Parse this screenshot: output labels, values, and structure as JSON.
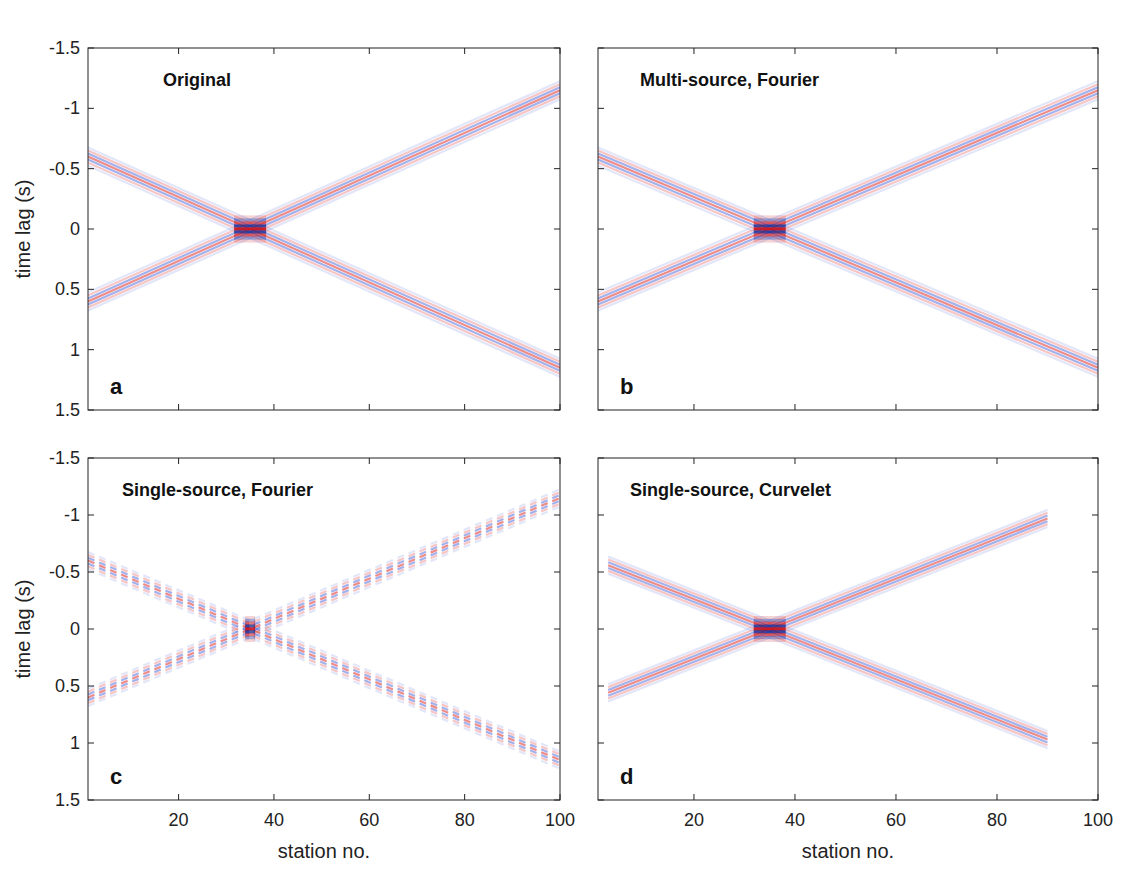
{
  "chart_data": [
    {
      "type": "line",
      "title": "Original",
      "annotation": "a",
      "ylabel": "time lag (s)",
      "x": [
        1,
        35,
        100
      ],
      "series": [
        {
          "values": [
            -0.6,
            0,
            1.15
          ]
        },
        {
          "values": [
            0.6,
            0,
            -1.15
          ]
        }
      ],
      "xlim": [
        1,
        100
      ],
      "xticks": [
        20,
        40,
        60,
        80,
        100
      ],
      "ylim": [
        1.5,
        -1.5
      ],
      "yticks": [
        -1.5,
        -1,
        -0.5,
        0,
        0.5,
        1,
        1.5
      ],
      "tick_labels": "y",
      "line_style": "solid"
    },
    {
      "type": "line",
      "title": "Multi-source, Fourier",
      "annotation": "b",
      "x": [
        1,
        35,
        100
      ],
      "series": [
        {
          "values": [
            -0.6,
            0,
            1.15
          ]
        },
        {
          "values": [
            0.6,
            0,
            -1.15
          ]
        }
      ],
      "xlim": [
        1,
        100
      ],
      "xticks": [
        20,
        40,
        60,
        80,
        100
      ],
      "ylim": [
        1.5,
        -1.5
      ],
      "yticks": [
        -1.5,
        -1,
        -0.5,
        0,
        0.5,
        1,
        1.5
      ],
      "tick_labels": false,
      "line_style": "solid"
    },
    {
      "type": "line",
      "title": "Single-source, Fourier",
      "annotation": "c",
      "ylabel": "time lag (s)",
      "xlabel": "station no.",
      "x": [
        1,
        35,
        100
      ],
      "series": [
        {
          "values": [
            -0.6,
            0,
            1.15
          ]
        },
        {
          "values": [
            0.6,
            0,
            -1.15
          ]
        }
      ],
      "xlim": [
        1,
        100
      ],
      "xticks": [
        20,
        40,
        60,
        80,
        100
      ],
      "ylim": [
        1.5,
        -1.5
      ],
      "yticks": [
        -1.5,
        -1,
        -0.5,
        0,
        0.5,
        1,
        1.5
      ],
      "tick_labels": true,
      "line_style": "dashed"
    },
    {
      "type": "line",
      "title": "Single-source, Curvelet",
      "annotation": "d",
      "xlabel": "station no.",
      "x": [
        3,
        35,
        90
      ],
      "series": [
        {
          "values": [
            -0.56,
            0,
            0.97
          ]
        },
        {
          "values": [
            0.56,
            0,
            -0.97
          ]
        }
      ],
      "xlim": [
        1,
        100
      ],
      "xticks": [
        20,
        40,
        60,
        80,
        100
      ],
      "ylim": [
        1.5,
        -1.5
      ],
      "yticks": [
        -1.5,
        -1,
        -0.5,
        0,
        0.5,
        1,
        1.5
      ],
      "tick_labels": "x",
      "line_style": "solid"
    }
  ]
}
